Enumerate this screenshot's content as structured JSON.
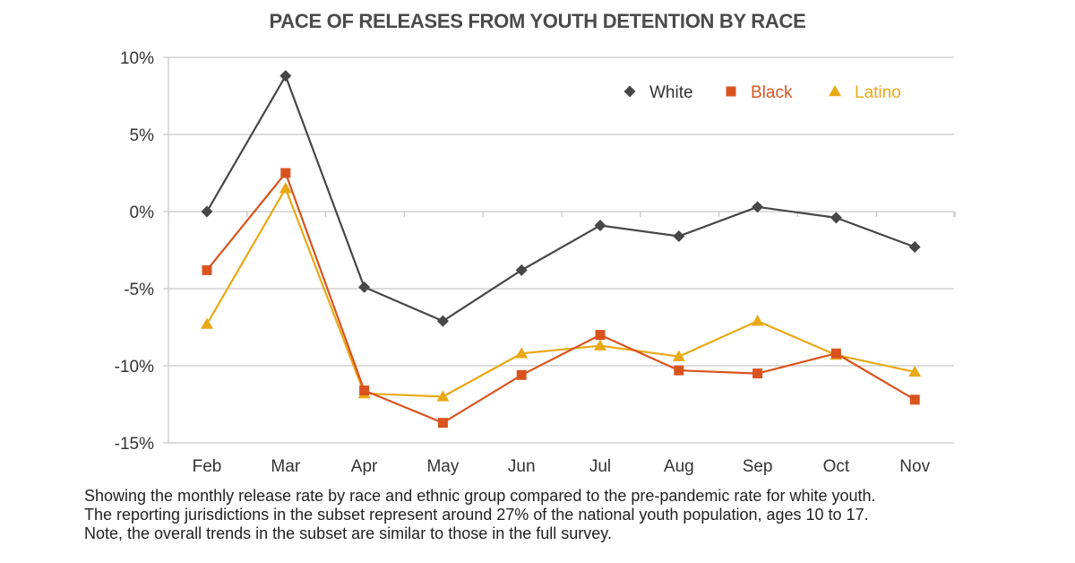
{
  "chart_data": {
    "type": "line",
    "title": "PACE OF RELEASES FROM YOUTH DETENTION BY RACE",
    "xlabel": "",
    "ylabel": "",
    "categories": [
      "Feb",
      "Mar",
      "Apr",
      "May",
      "Jun",
      "Jul",
      "Aug",
      "Sep",
      "Oct",
      "Nov"
    ],
    "ylim": [
      -15,
      10
    ],
    "yticks": [
      10,
      5,
      0,
      -5,
      -10,
      -15
    ],
    "ytick_labels": [
      "10%",
      "5%",
      "0%",
      "-5%",
      "-10%",
      "-15%"
    ],
    "grid": true,
    "legend_position": "top-right",
    "series": [
      {
        "name": "White",
        "color": "#474747",
        "marker": "diamond",
        "values": [
          0.0,
          8.8,
          -4.9,
          -7.1,
          -3.8,
          -0.9,
          -1.6,
          0.3,
          -0.4,
          -2.3
        ]
      },
      {
        "name": "Black",
        "color": "#d9531e",
        "marker": "square",
        "values": [
          -3.8,
          2.5,
          -11.6,
          -13.7,
          -10.6,
          -8.0,
          -10.3,
          -10.5,
          -9.2,
          -12.2
        ]
      },
      {
        "name": "Latino",
        "color": "#e8a917",
        "marker": "triangle",
        "values": [
          -7.3,
          1.5,
          -11.8,
          -12.0,
          -9.2,
          -8.7,
          -9.4,
          -7.1,
          -9.3,
          -10.4
        ]
      }
    ]
  },
  "caption": [
    "Showing the monthly release rate by race and ethnic group compared to the pre-pandemic rate for white youth.",
    "The reporting jurisdictions in the subset represent around 27% of the national youth population, ages 10 to 17.",
    "Note, the overall trends in the subset are similar to those in the full survey."
  ]
}
